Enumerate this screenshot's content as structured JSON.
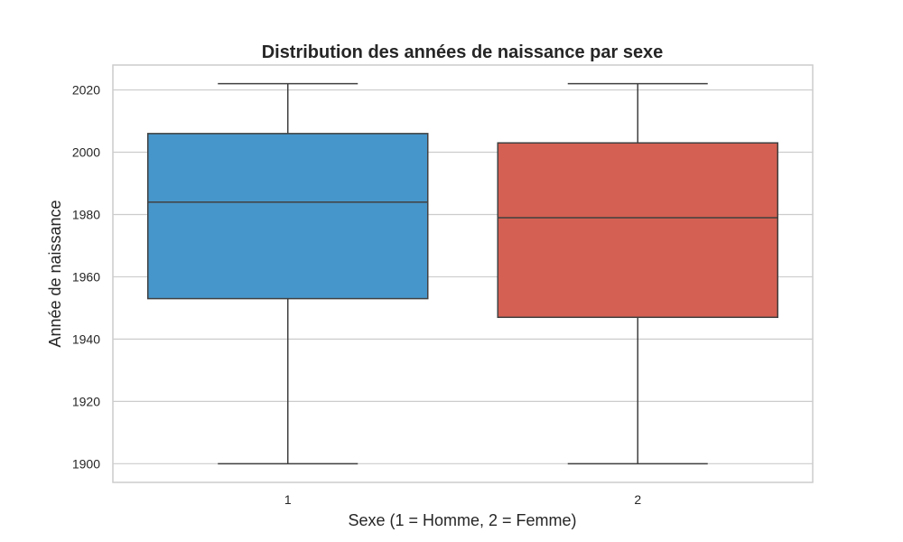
{
  "chart_data": {
    "type": "box",
    "title": "Distribution des années de naissance par sexe",
    "xlabel": "Sexe (1 = Homme, 2 = Femme)",
    "ylabel": "Année de naissance",
    "categories": [
      "1",
      "2"
    ],
    "ylim": [
      1894,
      2028
    ],
    "yticks": [
      1900,
      1920,
      1940,
      1960,
      1980,
      2000,
      2020
    ],
    "grid": true,
    "boxes": [
      {
        "category": "1",
        "whisker_low": 1900,
        "q1": 1953,
        "median": 1984,
        "q3": 2006,
        "whisker_high": 2022,
        "color": "#4796cb"
      },
      {
        "category": "2",
        "whisker_low": 1900,
        "q1": 1947,
        "median": 1979,
        "q3": 2003,
        "whisker_high": 2022,
        "color": "#d36053"
      }
    ]
  },
  "colors": {
    "grid": "#cccccc",
    "frame": "#cccccc",
    "line": "#404040",
    "text": "#262626"
  }
}
